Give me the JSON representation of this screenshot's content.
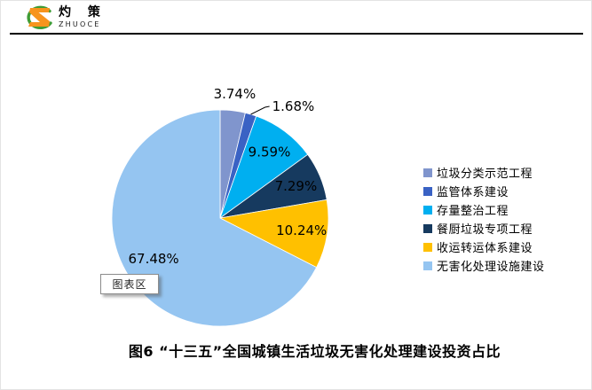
{
  "header": {
    "logo": {
      "brand_cn": "灼 策",
      "brand_en": "ZHUOCE",
      "icon_orange": "#F7941D",
      "icon_green": "#3F9C35"
    }
  },
  "chart_data": {
    "type": "pie",
    "title": "图6 “十三五”全国城镇生活垃圾无害化处理建设投资占比",
    "legend_position": "right",
    "start_angle_deg": 0,
    "direction": "clockwise",
    "data_label_color": "#000000",
    "categories": [
      "垃圾分类示范工程",
      "监管体系建设",
      "存量整治工程",
      "餐厨垃圾专项工程",
      "收运转运体系建设",
      "无害化处理设施建设"
    ],
    "slices": [
      {
        "label": "垃圾分类示范工程",
        "value": 3.74,
        "display": "3.74%",
        "color": "#8095CD",
        "placement": "outside-top"
      },
      {
        "label": "监管体系建设",
        "value": 1.68,
        "display": "1.68%",
        "color": "#3A62C4",
        "placement": "outside-leader"
      },
      {
        "label": "存量整治工程",
        "value": 9.59,
        "display": "9.59%",
        "color": "#00AFF0",
        "placement": "inside"
      },
      {
        "label": "餐厨垃圾专项工程",
        "value": 7.29,
        "display": "7.29%",
        "color": "#163A5F",
        "placement": "inside"
      },
      {
        "label": "收运转运体系建设",
        "value": 10.24,
        "display": "10.24%",
        "color": "#FFC000",
        "placement": "inside"
      },
      {
        "label": "无害化处理设施建设",
        "value": 67.48,
        "display": "67.48%",
        "color": "#95C5F1",
        "placement": "inside"
      }
    ]
  },
  "tooltip": {
    "text": "图表区"
  }
}
